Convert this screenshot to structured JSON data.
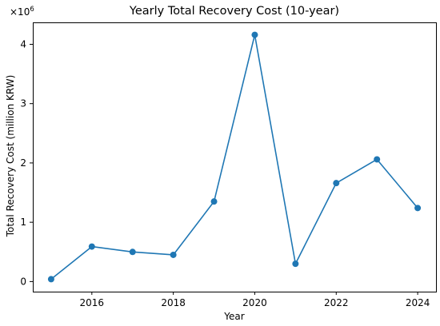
{
  "chart_data": {
    "type": "line",
    "title": "Yearly Total Recovery Cost (10-year)",
    "xlabel": "Year",
    "ylabel": "Total Recovery Cost (million KRW)",
    "offset_text": "×10",
    "offset_exponent": "6",
    "x": [
      2015,
      2016,
      2017,
      2018,
      2019,
      2020,
      2021,
      2022,
      2023,
      2024
    ],
    "series": [
      {
        "name": "",
        "values": [
          0.04,
          0.59,
          0.5,
          0.45,
          1.35,
          4.16,
          0.3,
          1.66,
          2.06,
          1.24
        ],
        "color": "#1f77b4"
      }
    ],
    "xticks": [
      2016,
      2018,
      2020,
      2022,
      2024
    ],
    "yticks": [
      0,
      1,
      2,
      3,
      4
    ],
    "xlim": [
      2014.55,
      2024.45
    ],
    "ylim": [
      -0.17,
      4.37
    ],
    "grid": false,
    "legend": "none"
  }
}
